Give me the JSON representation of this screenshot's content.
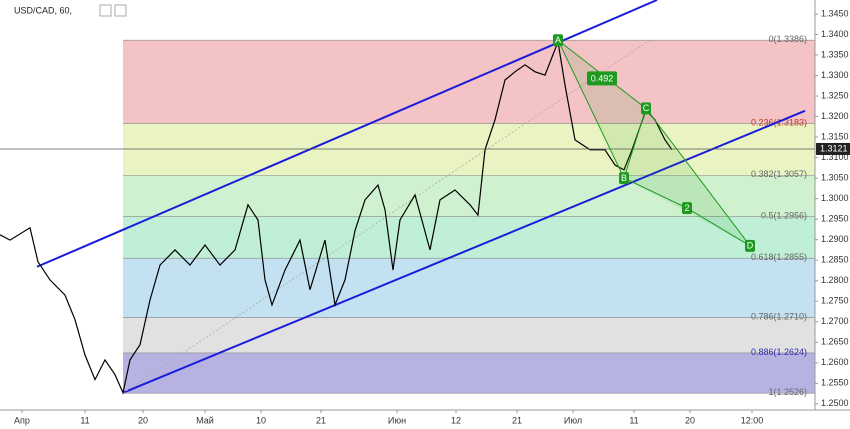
{
  "chart_data": {
    "type": "line",
    "title": "USD/CAD, 60,",
    "xlim": [
      0,
      815
    ],
    "ylim": [
      1.2485,
      1.3484
    ],
    "xticks": [
      {
        "value": 22,
        "label": "Апр"
      },
      {
        "value": 85,
        "label": "11"
      },
      {
        "value": 143,
        "label": "20"
      },
      {
        "value": 205,
        "label": "Май"
      },
      {
        "value": 261,
        "label": "10"
      },
      {
        "value": 321,
        "label": "21"
      },
      {
        "value": 397,
        "label": "Июн"
      },
      {
        "value": 456,
        "label": "12"
      },
      {
        "value": 517,
        "label": "21"
      },
      {
        "value": 573,
        "label": "Июл"
      },
      {
        "value": 634,
        "label": "11"
      },
      {
        "value": 690,
        "label": "20"
      },
      {
        "value": 752,
        "label": "12:00"
      }
    ],
    "yticks": [
      {
        "value": 1.25,
        "label": "1.2500"
      },
      {
        "value": 1.255,
        "label": "1.2550"
      },
      {
        "value": 1.26,
        "label": "1.2600"
      },
      {
        "value": 1.265,
        "label": "1.2650"
      },
      {
        "value": 1.27,
        "label": "1.2700"
      },
      {
        "value": 1.275,
        "label": "1.2750"
      },
      {
        "value": 1.28,
        "label": "1.2800"
      },
      {
        "value": 1.285,
        "label": "1.2850"
      },
      {
        "value": 1.29,
        "label": "1.2900"
      },
      {
        "value": 1.295,
        "label": "1.2950"
      },
      {
        "value": 1.3,
        "label": "1.3000"
      },
      {
        "value": 1.305,
        "label": "1.3050"
      },
      {
        "value": 1.31,
        "label": "1.3100"
      },
      {
        "value": 1.315,
        "label": "1.3150"
      },
      {
        "value": 1.32,
        "label": "1.3200"
      },
      {
        "value": 1.325,
        "label": "1.3250"
      },
      {
        "value": 1.33,
        "label": "1.3300"
      },
      {
        "value": 1.335,
        "label": "1.3350"
      },
      {
        "value": 1.34,
        "label": "1.3400"
      },
      {
        "value": 1.345,
        "label": "1.3450"
      }
    ],
    "series": [
      {
        "name": "USD/CAD",
        "color": "#000000",
        "x": [
          0,
          10,
          30,
          38,
          50,
          65,
          75,
          85,
          95,
          105,
          115,
          123,
          130,
          140,
          150,
          160,
          175,
          190,
          205,
          220,
          235,
          248,
          258,
          265,
          272,
          285,
          300,
          310,
          325,
          335,
          345,
          355,
          365,
          378,
          385,
          393,
          400,
          415,
          430,
          440,
          455,
          470,
          478,
          485,
          495,
          505,
          515,
          525,
          535,
          545,
          558,
          565,
          575,
          590,
          605,
          615,
          624,
          632,
          646,
          655,
          665,
          672
        ],
        "values": [
          1.2912,
          1.2899,
          1.2929,
          1.2846,
          1.2802,
          1.2765,
          1.2705,
          1.2619,
          1.2559,
          1.2607,
          1.2571,
          1.2527,
          1.2607,
          1.2644,
          1.2753,
          1.2838,
          1.2875,
          1.2838,
          1.2887,
          1.2838,
          1.2875,
          1.2985,
          1.2948,
          1.2802,
          1.2741,
          1.2826,
          1.2899,
          1.2778,
          1.2899,
          1.2741,
          1.2802,
          1.2922,
          1.2997,
          1.3033,
          1.2973,
          1.2826,
          1.2948,
          1.3009,
          1.2875,
          1.2997,
          1.3021,
          1.2985,
          1.296,
          1.3119,
          1.3192,
          1.3289,
          1.3309,
          1.3326,
          1.3309,
          1.3301,
          1.3382,
          1.3277,
          1.3143,
          1.3119,
          1.3119,
          1.3082,
          1.307,
          1.3119,
          1.3216,
          1.3192,
          1.3143,
          1.3119
        ]
      }
    ],
    "last_price": 1.3121,
    "fib_levels": [
      {
        "value": 1.3386,
        "label": "0(1.3386)"
      },
      {
        "value": 1.3183,
        "label": "0.236(1.3183)"
      },
      {
        "value": 1.3057,
        "label": "0.382(1.3057)"
      },
      {
        "value": 1.2956,
        "label": "0.5(1.2956)"
      },
      {
        "value": 1.2855,
        "label": "0.618(1.2855)"
      },
      {
        "value": 1.271,
        "label": "0.786(1.2710)"
      },
      {
        "value": 1.2624,
        "label": "0.886(1.2624)"
      },
      {
        "value": 1.2526,
        "label": "1(1.2526)"
      }
    ],
    "fib_colors": [
      "#f2b8bb",
      "#e6f2b8",
      "#c8efc8",
      "#b5ecd0",
      "#b9dcef",
      "#dcdcdc",
      "#a9a6de"
    ],
    "channel": [
      {
        "x": [
          37,
          657
        ],
        "values": [
          1.2834,
          1.3484
        ]
      },
      {
        "x": [
          123,
          805
        ],
        "values": [
          1.2527,
          1.3214
        ]
      }
    ],
    "channel_color": "#1b1bdc",
    "pattern": [
      {
        "label": "A",
        "x": 558,
        "value": 1.3386
      },
      {
        "label": "B",
        "x": 624,
        "value": 1.305
      },
      {
        "label": "C",
        "x": 646,
        "value": 1.322
      },
      {
        "label": "2",
        "x": 687,
        "value": 1.2977
      },
      {
        "label": "D",
        "x": 750,
        "value": 1.2885
      }
    ],
    "pattern_ratio": {
      "label": "0.492",
      "x": 602,
      "value": 1.3293
    },
    "pattern_color": "#1e9a1e"
  }
}
